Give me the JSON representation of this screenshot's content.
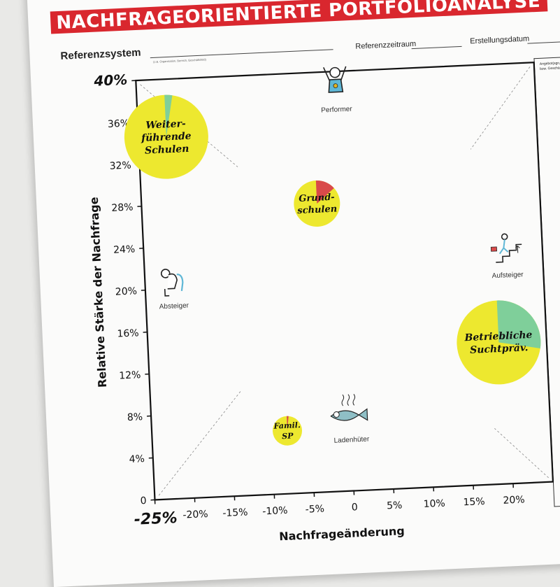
{
  "header": {
    "title": "NACHFRAGEORIENTIERTE PORTFOLIOANALYSE",
    "reference_system_label": "Referenzsystem",
    "reference_system_hint": "(z.B. Organisation, Bereich, Geschäftsfeld)",
    "reference_period_label": "Referenzzeitraum",
    "creation_date_label": "Erstellungsdatum",
    "side_panel_text": "Angebot(sgruppe)\nbzw. Geschä"
  },
  "colors": {
    "title_bg": "#d9272e",
    "bubble_yellow": "#ede82f",
    "bubble_green": "#7fcf9a",
    "bubble_red": "#d94a4a",
    "accent_blue": "#5fb7d6"
  },
  "chart_data": {
    "type": "scatter",
    "xlabel": "Nachfrageänderung",
    "ylabel": "Relative Stärke der Nachfrage",
    "xlim": [
      -25,
      25
    ],
    "ylim": [
      0,
      40
    ],
    "x_ticks": [
      "-25%",
      "-20%",
      "-15%",
      "-10%",
      "-5%",
      "0",
      "5%",
      "10%",
      "15%",
      "20%"
    ],
    "x_tick_values": [
      -25,
      -20,
      -15,
      -10,
      -5,
      0,
      5,
      10,
      15,
      20
    ],
    "y_ticks": [
      "0",
      "4%",
      "8%",
      "12%",
      "16%",
      "20%",
      "24%",
      "28%",
      "32%",
      "36%",
      "40%"
    ],
    "y_tick_values": [
      0,
      4,
      8,
      12,
      16,
      20,
      24,
      28,
      32,
      36,
      40
    ],
    "grid": false,
    "quadrant_labels": [
      {
        "name": "Performer",
        "x": 0,
        "y": 37.5,
        "icon": "cheering-person-icon"
      },
      {
        "name": "Absteiger",
        "x": -21.5,
        "y": 19.5,
        "icon": "slumped-person-icon"
      },
      {
        "name": "Aufsteiger",
        "x": 20.5,
        "y": 21,
        "icon": "climbing-person-icon"
      },
      {
        "name": "Ladenhüter",
        "x": 0,
        "y": 6,
        "icon": "smelly-fish-icon"
      }
    ],
    "bubbles": [
      {
        "label": [
          "Weiter-",
          "führende",
          "Schulen"
        ],
        "x": -21.5,
        "y": 34.5,
        "size": "large",
        "green_share": 0.03,
        "red_share": 0
      },
      {
        "label": [
          "Grund-",
          "schulen"
        ],
        "x": -3,
        "y": 27.5,
        "size": "medium",
        "green_share": 0,
        "red_share": 0.14
      },
      {
        "label": [
          "Betriebliche",
          "Suchtpräv."
        ],
        "x": 19,
        "y": 13.5,
        "size": "large",
        "green_share": 0.28,
        "red_share": 0
      },
      {
        "label": [
          "Famil.",
          "SP"
        ],
        "x": -8,
        "y": 6,
        "size": "small",
        "green_share": 0,
        "red_share": 0.02
      }
    ]
  }
}
